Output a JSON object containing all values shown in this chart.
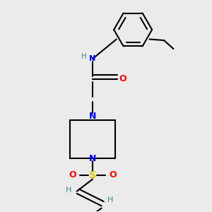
{
  "bg_color": "#ebebeb",
  "atom_colors": {
    "N": "#0000ee",
    "O": "#ff0000",
    "S": "#cccc00",
    "C": "#000000",
    "H": "#408080"
  },
  "bond_color": "#000000",
  "bond_width": 1.5
}
